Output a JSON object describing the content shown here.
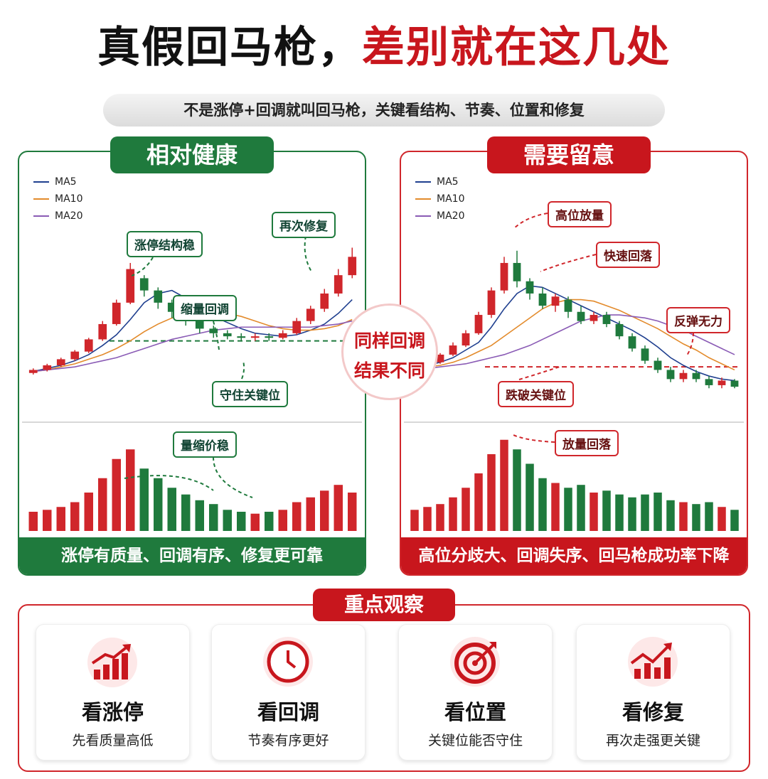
{
  "header": {
    "title_main": "真假回马枪，",
    "title_accent": "差别就在这几处",
    "subtitle": "不是涨停+回调就叫回马枪，关键看结构、节奏、位置和修复"
  },
  "left_panel": {
    "title": "相对健康",
    "footer": "涨停有质量、回调有序、修复更可靠",
    "annotations": [
      "涨停结构稳",
      "缩量回调",
      "再次修复",
      "守住关键位",
      "量缩价稳"
    ]
  },
  "right_panel": {
    "title": "需要留意",
    "footer": "高位分歧大、回调失序、回马枪成功率下降",
    "annotations": [
      "高位放量",
      "快速回落",
      "反弹无力",
      "跌破关键位",
      "放量回落"
    ]
  },
  "center_badge": [
    "同样回调",
    "结果不同"
  ],
  "observe": {
    "title": "重点观察",
    "items": [
      {
        "title": "看涨停",
        "desc": "先看质量高低"
      },
      {
        "title": "看回调",
        "desc": "节奏有序更好"
      },
      {
        "title": "看位置",
        "desc": "关键位能否守住"
      },
      {
        "title": "看修复",
        "desc": "再次走强更关键"
      }
    ]
  },
  "chart_data": [
    {
      "type": "candlestick",
      "up_color": "#d0262b",
      "down_color": "#1f7a3d",
      "ylim": [
        -5,
        95
      ],
      "volume_ylim": [
        0,
        100
      ],
      "key_level": 31,
      "open": [
        10,
        12,
        15,
        19,
        24,
        32,
        42,
        56,
        72,
        64,
        56,
        50,
        44,
        39,
        36,
        34,
        33,
        34,
        33,
        36,
        44,
        52,
        62,
        74
      ],
      "close": [
        12,
        15,
        19,
        24,
        32,
        42,
        56,
        78,
        64,
        56,
        50,
        44,
        39,
        36,
        34,
        33,
        34,
        33,
        36,
        44,
        52,
        62,
        74,
        86
      ],
      "high": [
        13,
        16,
        20,
        25,
        33,
        44,
        58,
        82,
        74,
        66,
        58,
        52,
        46,
        41,
        38,
        36,
        36,
        36,
        38,
        46,
        54,
        65,
        78,
        92
      ],
      "low": [
        9,
        11,
        14,
        18,
        23,
        31,
        41,
        55,
        60,
        52,
        46,
        41,
        36,
        33,
        32,
        31,
        31,
        31,
        32,
        35,
        42,
        50,
        60,
        72
      ],
      "volume": [
        20,
        22,
        25,
        30,
        40,
        55,
        75,
        85,
        65,
        55,
        45,
        38,
        32,
        28,
        22,
        20,
        18,
        20,
        22,
        30,
        35,
        42,
        48,
        40
      ],
      "series": [
        {
          "name": "MA5",
          "color": "#1f3f8f",
          "values": [
            11,
            13,
            15,
            18,
            22,
            28,
            35,
            45,
            56,
            62,
            64,
            59,
            53,
            47,
            43,
            39,
            36,
            35,
            34,
            35,
            38,
            42,
            49,
            58
          ]
        },
        {
          "name": "MA10",
          "color": "#e38b2c",
          "values": [
            11,
            12,
            14,
            16,
            19,
            22,
            26,
            31,
            37,
            42,
            46,
            49,
            50,
            50,
            49,
            47,
            44,
            41,
            39,
            38,
            38,
            39,
            41,
            45
          ]
        },
        {
          "name": "MA20",
          "color": "#8a5bb5",
          "values": [
            11,
            12,
            13,
            14,
            16,
            18,
            20,
            23,
            26,
            29,
            32,
            34,
            36,
            38,
            39,
            40,
            40,
            40,
            40,
            40,
            40,
            41,
            42,
            44
          ]
        }
      ]
    },
    {
      "type": "candlestick",
      "up_color": "#d0262b",
      "down_color": "#1f7a3d",
      "ylim": [
        -5,
        95
      ],
      "volume_ylim": [
        0,
        100
      ],
      "key_level": 14,
      "open": [
        12,
        14,
        17,
        22,
        28,
        36,
        48,
        64,
        82,
        70,
        62,
        54,
        58,
        50,
        44,
        48,
        42,
        34,
        26,
        18,
        12,
        6,
        10,
        6,
        2,
        5
      ],
      "close": [
        14,
        17,
        22,
        28,
        36,
        48,
        64,
        82,
        70,
        62,
        54,
        60,
        50,
        44,
        48,
        42,
        34,
        26,
        18,
        12,
        6,
        10,
        6,
        2,
        5,
        1
      ],
      "high": [
        15,
        18,
        23,
        30,
        38,
        50,
        66,
        86,
        90,
        72,
        66,
        62,
        60,
        54,
        50,
        50,
        44,
        36,
        28,
        20,
        14,
        12,
        12,
        8,
        7,
        6
      ],
      "low": [
        11,
        13,
        16,
        21,
        27,
        35,
        46,
        62,
        66,
        58,
        52,
        50,
        46,
        42,
        42,
        40,
        32,
        24,
        16,
        10,
        4,
        4,
        4,
        0,
        0,
        0
      ],
      "volume": [
        22,
        25,
        28,
        35,
        45,
        60,
        80,
        95,
        85,
        70,
        55,
        50,
        45,
        48,
        40,
        42,
        38,
        35,
        38,
        40,
        32,
        30,
        28,
        30,
        25,
        22
      ],
      "series": [
        {
          "name": "MA5",
          "color": "#1f3f8f",
          "values": [
            13,
            15,
            17,
            20,
            25,
            30,
            40,
            52,
            62,
            67,
            66,
            62,
            58,
            54,
            50,
            46,
            42,
            38,
            33,
            27,
            20,
            15,
            11,
            8,
            6,
            5
          ]
        },
        {
          "name": "MA10",
          "color": "#e38b2c",
          "values": [
            13,
            14,
            15,
            17,
            20,
            24,
            28,
            34,
            40,
            46,
            52,
            56,
            58,
            58,
            57,
            54,
            51,
            47,
            43,
            39,
            34,
            29,
            25,
            20,
            16,
            12
          ]
        },
        {
          "name": "MA20",
          "color": "#8a5bb5",
          "values": [
            13,
            13,
            14,
            15,
            16,
            18,
            20,
            22,
            25,
            28,
            32,
            36,
            40,
            44,
            46,
            48,
            48,
            47,
            46,
            44,
            41,
            38,
            34,
            30,
            26,
            22
          ]
        }
      ]
    }
  ]
}
